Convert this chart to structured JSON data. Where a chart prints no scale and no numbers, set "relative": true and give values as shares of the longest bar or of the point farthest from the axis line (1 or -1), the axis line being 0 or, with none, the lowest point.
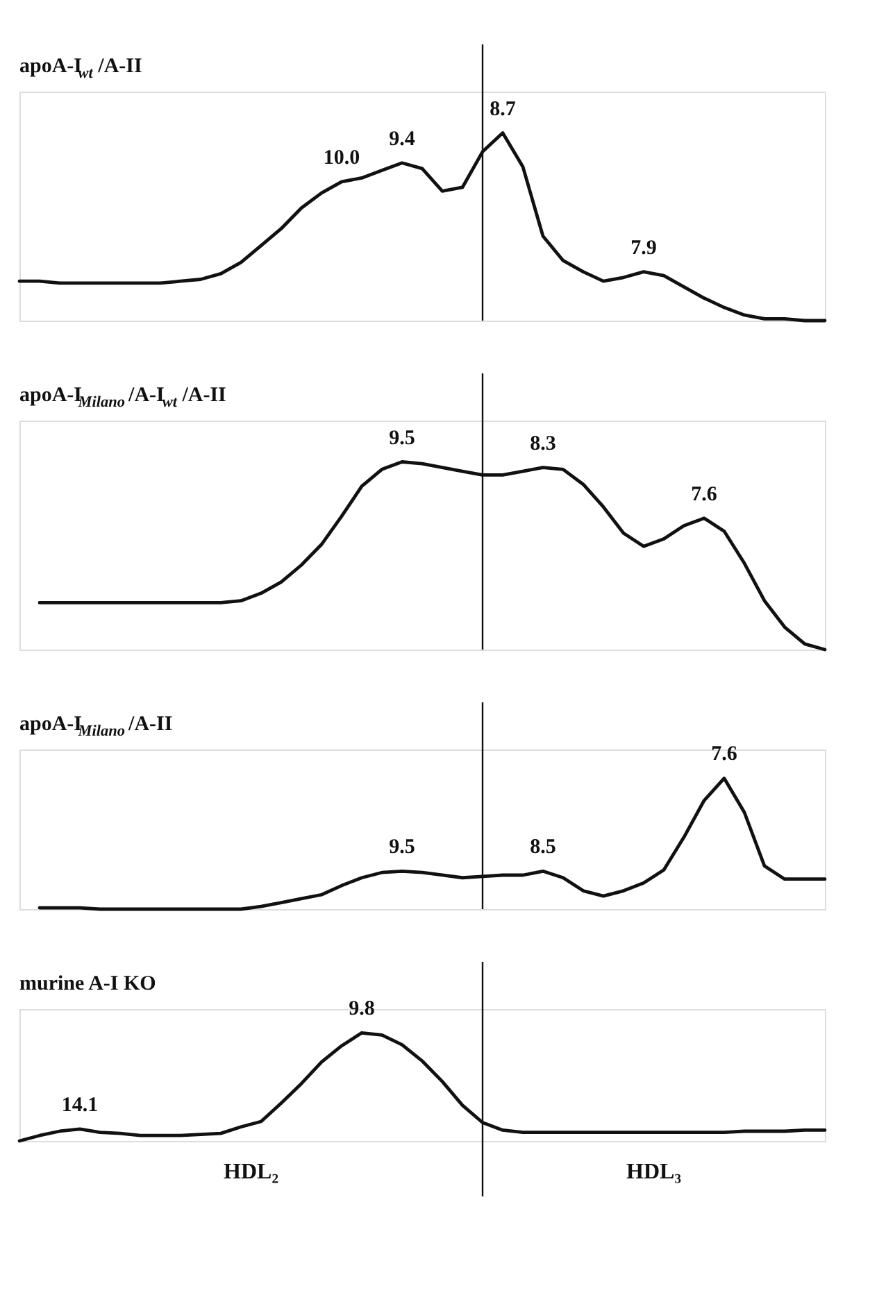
{
  "chart_data": [
    {
      "type": "line",
      "title": "apoA-I$_{wt}$/A-II",
      "relative": true,
      "color": "#111111",
      "marker": "none",
      "line_style": "solid",
      "grid": false,
      "tick_labels": false,
      "categories": [
        null,
        null,
        null,
        null,
        null,
        null,
        null,
        null,
        null,
        null,
        null,
        null,
        null,
        null,
        null,
        null,
        null,
        null,
        null,
        null,
        null,
        null,
        null,
        null,
        null,
        null,
        null,
        null,
        null,
        null,
        null,
        null,
        null,
        null,
        null,
        null,
        null,
        null,
        null,
        null,
        null
      ],
      "values": [
        0.21,
        0.21,
        0.2,
        0.2,
        0.2,
        0.2,
        0.2,
        0.2,
        0.21,
        0.22,
        0.25,
        0.31,
        0.4,
        0.49,
        0.6,
        0.68,
        0.74,
        0.76,
        0.8,
        0.84,
        0.81,
        0.69,
        0.71,
        0.9,
        1,
        0.82,
        0.45,
        0.32,
        0.26,
        0.21,
        0.23,
        0.26,
        0.24,
        0.18,
        0.12,
        0.07,
        0.03,
        0.01,
        0.01,
        0,
        0
      ],
      "annotations": [
        "10.0",
        "9.4",
        "8.7",
        "7.9"
      ]
    },
    {
      "type": "line",
      "title": "apoA-I$_{Milano}$/A-I$_{wt}$/A-II",
      "relative": true,
      "color": "#111111",
      "marker": "none",
      "line_style": "solid",
      "grid": false,
      "tick_labels": false,
      "categories": [
        null,
        null,
        null,
        null,
        null,
        null,
        null,
        null,
        null,
        null,
        null,
        null,
        null,
        null,
        null,
        null,
        null,
        null,
        null,
        null,
        null,
        null,
        null,
        null,
        null,
        null,
        null,
        null,
        null,
        null,
        null,
        null,
        null,
        null,
        null,
        null,
        null,
        null,
        null,
        null,
        null
      ],
      "values": [
        null,
        0.25,
        0.25,
        0.25,
        0.25,
        0.25,
        0.25,
        0.25,
        0.25,
        0.25,
        0.25,
        0.26,
        0.3,
        0.36,
        0.45,
        0.56,
        0.71,
        0.87,
        0.96,
        1,
        0.99,
        0.97,
        0.95,
        0.93,
        0.93,
        0.95,
        0.97,
        0.96,
        0.88,
        0.76,
        0.62,
        0.55,
        0.59,
        0.66,
        0.7,
        0.63,
        0.46,
        0.26,
        0.12,
        0.03,
        0
      ],
      "annotations": [
        "9.5",
        "8.3",
        "7.6"
      ]
    },
    {
      "type": "line",
      "title": "apoA-I$_{Milano}$/A-II",
      "relative": true,
      "color": "#111111",
      "marker": "none",
      "line_style": "solid",
      "grid": false,
      "tick_labels": false,
      "categories": [
        null,
        null,
        null,
        null,
        null,
        null,
        null,
        null,
        null,
        null,
        null,
        null,
        null,
        null,
        null,
        null,
        null,
        null,
        null,
        null,
        null,
        null,
        null,
        null,
        null,
        null,
        null,
        null,
        null,
        null,
        null,
        null,
        null,
        null,
        null,
        null,
        null,
        null,
        null,
        null,
        null
      ],
      "values": [
        null,
        0.01,
        0.01,
        0.01,
        0,
        0,
        0,
        0,
        0,
        0,
        0,
        0,
        0.02,
        0.05,
        0.08,
        0.11,
        0.18,
        0.24,
        0.28,
        0.29,
        0.28,
        0.26,
        0.24,
        0.25,
        0.26,
        0.26,
        0.29,
        0.24,
        0.14,
        0.1,
        0.14,
        0.2,
        0.3,
        0.55,
        0.83,
        1,
        0.74,
        0.33,
        0.23,
        0.23,
        0.23
      ],
      "annotations": [
        "9.5",
        "8.5",
        "7.6"
      ]
    },
    {
      "type": "line",
      "title": "murine A-I KO",
      "relative": true,
      "color": "#111111",
      "marker": "none",
      "line_style": "solid",
      "grid": false,
      "tick_labels": false,
      "categories": [
        null,
        null,
        null,
        null,
        null,
        null,
        null,
        null,
        null,
        null,
        null,
        null,
        null,
        null,
        null,
        null,
        null,
        null,
        null,
        null,
        null,
        null,
        null,
        null,
        null,
        null,
        null,
        null,
        null,
        null,
        null,
        null,
        null,
        null,
        null,
        null,
        null,
        null,
        null,
        null,
        null
      ],
      "values": [
        0,
        0.05,
        0.09,
        0.11,
        0.08,
        0.07,
        0.05,
        0.05,
        0.05,
        0.06,
        0.07,
        0.13,
        0.18,
        0.35,
        0.53,
        0.73,
        0.88,
        1,
        0.98,
        0.89,
        0.74,
        0.55,
        0.33,
        0.17,
        0.1,
        0.08,
        0.08,
        0.08,
        0.08,
        0.08,
        0.08,
        0.08,
        0.08,
        0.08,
        0.08,
        0.08,
        0.09,
        0.09,
        0.09,
        0.1,
        0.1
      ],
      "annotations": [
        "14.1",
        "9.8",
        "HDL₂",
        "HDL₃"
      ]
    }
  ]
}
